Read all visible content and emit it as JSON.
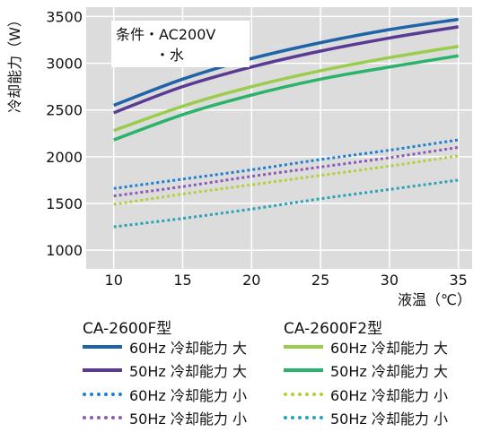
{
  "chart_data": {
    "type": "line",
    "ylabel": "冷却能力（W）",
    "xlabel": "液温（℃）",
    "xlim": [
      8,
      36
    ],
    "ylim": [
      800,
      3600
    ],
    "xticks": [
      10,
      15,
      20,
      25,
      30,
      35
    ],
    "yticks": [
      1000,
      1500,
      2000,
      2500,
      3000,
      3500
    ],
    "grid": true,
    "annotation_lines": [
      "条件・AC200V",
      "・水"
    ],
    "groups": [
      {
        "title": "CA-2600F型",
        "series": [
          {
            "name": "60Hz 冷却能力 大",
            "style": "solid",
            "color": "#1f63a8",
            "x": [
              10,
              15,
              20,
              25,
              30,
              35
            ],
            "y": [
              2550,
              2830,
              3050,
              3220,
              3360,
              3470
            ]
          },
          {
            "name": "50Hz 冷却能力 大",
            "style": "solid",
            "color": "#5a3b94",
            "x": [
              10,
              15,
              20,
              25,
              30,
              35
            ],
            "y": [
              2470,
              2750,
              2960,
              3130,
              3270,
              3390
            ]
          },
          {
            "name": "60Hz 冷却能力 小",
            "style": "dotted",
            "color": "#1f7fd0",
            "x": [
              10,
              15,
              20,
              25,
              30,
              35
            ],
            "y": [
              1660,
              1760,
              1860,
              1970,
              2070,
              2180
            ]
          },
          {
            "name": "50Hz 冷却能力 小",
            "style": "dotted",
            "color": "#8b5ab5",
            "x": [
              10,
              15,
              20,
              25,
              30,
              35
            ],
            "y": [
              1580,
              1680,
              1790,
              1890,
              1990,
              2100
            ]
          }
        ]
      },
      {
        "title": "CA-2600F2型",
        "series": [
          {
            "name": "60Hz 冷却能力 大",
            "style": "solid",
            "color": "#9acd4c",
            "x": [
              10,
              15,
              20,
              25,
              30,
              35
            ],
            "y": [
              2280,
              2540,
              2750,
              2920,
              3060,
              3180
            ]
          },
          {
            "name": "50Hz 冷却能力 大",
            "style": "solid",
            "color": "#2bb26b",
            "x": [
              10,
              15,
              20,
              25,
              30,
              35
            ],
            "y": [
              2180,
              2450,
              2660,
              2830,
              2960,
              3080
            ]
          },
          {
            "name": "60Hz 冷却能力 小",
            "style": "dotted",
            "color": "#b5cd3c",
            "x": [
              10,
              15,
              20,
              25,
              30,
              35
            ],
            "y": [
              1490,
              1600,
              1700,
              1800,
              1900,
              2010
            ]
          },
          {
            "name": "50Hz 冷却能力 小",
            "style": "dotted",
            "color": "#2aa3b8",
            "x": [
              10,
              15,
              20,
              25,
              30,
              35
            ],
            "y": [
              1250,
              1340,
              1440,
              1550,
              1650,
              1750
            ]
          }
        ]
      }
    ]
  }
}
